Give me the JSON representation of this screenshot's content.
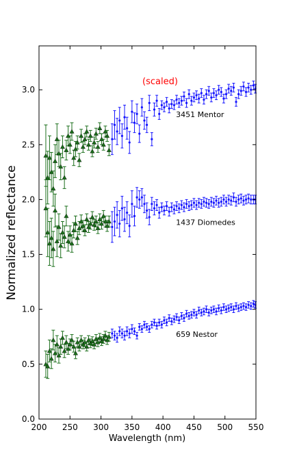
{
  "chart_data": {
    "type": "scatter",
    "title": "",
    "xlabel": "Wavelength (nm)",
    "ylabel": "Normalized reflectance",
    "xlim": [
      200,
      550
    ],
    "ylim": [
      0.0,
      3.4
    ],
    "x_ticks": [
      "200",
      "250",
      "300",
      "350",
      "400",
      "450",
      "500",
      "550"
    ],
    "y_ticks": [
      "0.0",
      "0.5",
      "1.0",
      "1.5",
      "2.0",
      "2.5",
      "3.0"
    ],
    "grid": false,
    "annotation": "(scaled)",
    "colors": {
      "uv": "#1a6e1a",
      "vis": "#1414ff",
      "annotation": "#ff0000"
    },
    "objects": [
      {
        "label": "3451 Mentor",
        "label_pos": [
          421,
          2.75
        ],
        "uv": {
          "x": [
            211,
            214,
            217,
            220,
            223,
            226,
            229,
            232,
            235,
            238,
            241,
            244,
            247,
            250,
            253,
            256,
            259,
            262,
            265,
            268,
            271,
            274,
            277,
            280,
            283,
            286,
            289,
            292,
            295,
            298,
            301,
            304,
            307,
            310,
            313
          ],
          "y": [
            2.4,
            2.2,
            2.38,
            2.25,
            2.1,
            2.35,
            2.55,
            2.42,
            2.3,
            2.48,
            2.2,
            2.45,
            2.58,
            2.5,
            2.62,
            2.38,
            2.46,
            2.52,
            2.36,
            2.58,
            2.48,
            2.55,
            2.62,
            2.5,
            2.58,
            2.44,
            2.52,
            2.6,
            2.48,
            2.65,
            2.55,
            2.5,
            2.62,
            2.58,
            2.45
          ],
          "err": [
            0.28,
            0.24,
            0.2,
            0.18,
            0.16,
            0.15,
            0.14,
            0.12,
            0.12,
            0.1,
            0.1,
            0.09,
            0.09,
            0.08,
            0.08,
            0.07,
            0.07,
            0.06,
            0.06,
            0.06,
            0.05,
            0.05,
            0.05,
            0.05,
            0.05,
            0.05,
            0.05,
            0.05,
            0.05,
            0.05,
            0.05,
            0.05,
            0.05,
            0.05,
            0.05
          ]
        },
        "vis": {
          "x": [
            318,
            322,
            326,
            330,
            334,
            338,
            342,
            346,
            350,
            354,
            358,
            362,
            366,
            370,
            374,
            378,
            382,
            386,
            390,
            394,
            398,
            402,
            406,
            410,
            414,
            418,
            422,
            426,
            430,
            434,
            438,
            442,
            446,
            450,
            454,
            458,
            462,
            466,
            470,
            474,
            478,
            482,
            486,
            490,
            494,
            498,
            502,
            506,
            510,
            514,
            518,
            522,
            526,
            530,
            534,
            538,
            542,
            546,
            549
          ],
          "y": [
            2.55,
            2.68,
            2.62,
            2.72,
            2.58,
            2.75,
            2.65,
            2.52,
            2.8,
            2.7,
            2.78,
            2.6,
            2.84,
            2.72,
            2.68,
            2.88,
            2.55,
            2.82,
            2.9,
            2.78,
            2.86,
            2.84,
            2.89,
            2.83,
            2.87,
            2.86,
            2.91,
            2.88,
            2.9,
            2.94,
            2.88,
            2.96,
            2.9,
            2.93,
            2.95,
            2.92,
            2.97,
            2.91,
            2.96,
            2.99,
            2.93,
            2.97,
            2.95,
            3.0,
            2.98,
            2.92,
            2.96,
            3.01,
            2.99,
            3.02,
            2.89,
            2.96,
            2.99,
            3.03,
            2.98,
            3.02,
            3.0,
            3.04,
            3.01
          ],
          "err": [
            0.14,
            0.13,
            0.12,
            0.12,
            0.11,
            0.11,
            0.1,
            0.1,
            0.1,
            0.09,
            0.09,
            0.08,
            0.08,
            0.08,
            0.07,
            0.07,
            0.06,
            0.06,
            0.05,
            0.05,
            0.04,
            0.04,
            0.04,
            0.04,
            0.04,
            0.04,
            0.04,
            0.04,
            0.04,
            0.04,
            0.04,
            0.04,
            0.04,
            0.04,
            0.04,
            0.04,
            0.04,
            0.04,
            0.04,
            0.04,
            0.04,
            0.04,
            0.04,
            0.04,
            0.04,
            0.04,
            0.04,
            0.04,
            0.04,
            0.04,
            0.04,
            0.04,
            0.04,
            0.04,
            0.04,
            0.04,
            0.04,
            0.04,
            0.04
          ]
        }
      },
      {
        "label": "1437 Diomedes",
        "label_pos": [
          421,
          1.77
        ],
        "uv": {
          "x": [
            211,
            214,
            217,
            220,
            223,
            226,
            229,
            232,
            235,
            238,
            241,
            244,
            247,
            250,
            253,
            256,
            259,
            262,
            265,
            268,
            271,
            274,
            277,
            280,
            283,
            286,
            289,
            292,
            295,
            298,
            301,
            304,
            307,
            310,
            313
          ],
          "y": [
            1.92,
            1.7,
            1.6,
            1.65,
            1.55,
            1.9,
            1.62,
            1.75,
            1.58,
            1.7,
            1.66,
            1.85,
            1.62,
            1.68,
            1.6,
            1.72,
            1.78,
            1.65,
            1.74,
            1.8,
            1.76,
            1.72,
            1.82,
            1.75,
            1.78,
            1.84,
            1.77,
            1.8,
            1.74,
            1.82,
            1.78,
            1.85,
            1.8,
            1.76,
            1.8
          ],
          "err": [
            0.26,
            0.22,
            0.2,
            0.18,
            0.16,
            0.15,
            0.14,
            0.12,
            0.11,
            0.1,
            0.1,
            0.09,
            0.09,
            0.08,
            0.08,
            0.07,
            0.07,
            0.06,
            0.06,
            0.06,
            0.05,
            0.05,
            0.05,
            0.05,
            0.05,
            0.05,
            0.05,
            0.05,
            0.05,
            0.05,
            0.05,
            0.05,
            0.05,
            0.05,
            0.05
          ]
        },
        "vis": {
          "x": [
            318,
            322,
            326,
            330,
            334,
            338,
            342,
            346,
            350,
            354,
            358,
            362,
            366,
            370,
            374,
            378,
            382,
            386,
            390,
            394,
            398,
            402,
            406,
            410,
            414,
            418,
            422,
            426,
            430,
            434,
            438,
            442,
            446,
            450,
            454,
            458,
            462,
            466,
            470,
            474,
            478,
            482,
            486,
            490,
            494,
            498,
            502,
            506,
            510,
            514,
            518,
            522,
            526,
            530,
            534,
            538,
            542,
            546,
            549
          ],
          "y": [
            1.75,
            1.8,
            1.86,
            1.78,
            1.92,
            1.82,
            1.88,
            1.76,
            1.96,
            1.85,
            2.02,
            2.0,
            2.02,
            1.96,
            1.9,
            1.84,
            1.96,
            1.92,
            1.95,
            1.88,
            1.93,
            1.9,
            1.94,
            1.89,
            1.93,
            1.91,
            1.94,
            1.92,
            1.95,
            1.93,
            1.96,
            1.94,
            1.95,
            1.97,
            1.95,
            1.97,
            1.96,
            1.98,
            1.97,
            1.96,
            1.98,
            1.97,
            1.99,
            1.97,
            1.98,
            2.0,
            1.98,
            2.0,
            1.99,
            2.02,
            1.98,
            2.0,
            2.01,
            1.99,
            2.0,
            2.01,
            2.0,
            2.0,
            2.0
          ],
          "err": [
            0.14,
            0.13,
            0.12,
            0.12,
            0.11,
            0.11,
            0.1,
            0.1,
            0.12,
            0.09,
            0.09,
            0.08,
            0.08,
            0.08,
            0.07,
            0.07,
            0.06,
            0.06,
            0.05,
            0.05,
            0.04,
            0.04,
            0.04,
            0.04,
            0.04,
            0.04,
            0.04,
            0.04,
            0.04,
            0.04,
            0.04,
            0.04,
            0.04,
            0.04,
            0.04,
            0.04,
            0.04,
            0.04,
            0.04,
            0.04,
            0.04,
            0.04,
            0.04,
            0.04,
            0.04,
            0.04,
            0.04,
            0.04,
            0.04,
            0.04,
            0.04,
            0.04,
            0.04,
            0.04,
            0.04,
            0.04,
            0.04,
            0.04,
            0.04
          ]
        }
      },
      {
        "label": "659 Nestor",
        "label_pos": [
          421,
          0.75
        ],
        "uv": {
          "x": [
            211,
            214,
            217,
            220,
            223,
            226,
            229,
            232,
            235,
            238,
            241,
            244,
            247,
            250,
            253,
            256,
            259,
            262,
            265,
            268,
            271,
            274,
            277,
            280,
            283,
            286,
            289,
            292,
            295,
            298,
            301,
            304,
            307,
            310,
            313
          ],
          "y": [
            0.5,
            0.48,
            0.62,
            0.55,
            0.72,
            0.6,
            0.68,
            0.58,
            0.66,
            0.74,
            0.62,
            0.7,
            0.64,
            0.68,
            0.72,
            0.66,
            0.6,
            0.7,
            0.66,
            0.72,
            0.68,
            0.7,
            0.66,
            0.72,
            0.69,
            0.71,
            0.68,
            0.73,
            0.7,
            0.74,
            0.71,
            0.73,
            0.76,
            0.72,
            0.75
          ],
          "err": [
            0.12,
            0.11,
            0.1,
            0.09,
            0.09,
            0.08,
            0.08,
            0.07,
            0.07,
            0.06,
            0.06,
            0.06,
            0.05,
            0.05,
            0.05,
            0.05,
            0.05,
            0.04,
            0.04,
            0.04,
            0.04,
            0.04,
            0.04,
            0.04,
            0.04,
            0.04,
            0.04,
            0.04,
            0.04,
            0.04,
            0.04,
            0.04,
            0.04,
            0.04,
            0.04
          ]
        },
        "vis": {
          "x": [
            318,
            322,
            326,
            330,
            334,
            338,
            342,
            346,
            350,
            354,
            358,
            362,
            366,
            370,
            374,
            378,
            382,
            386,
            390,
            394,
            398,
            402,
            406,
            410,
            414,
            418,
            422,
            426,
            430,
            434,
            438,
            442,
            446,
            450,
            454,
            458,
            462,
            466,
            470,
            474,
            478,
            482,
            486,
            490,
            494,
            498,
            502,
            506,
            510,
            514,
            518,
            522,
            526,
            530,
            534,
            538,
            542,
            546,
            549
          ],
          "y": [
            0.78,
            0.76,
            0.74,
            0.8,
            0.78,
            0.76,
            0.8,
            0.78,
            0.82,
            0.8,
            0.76,
            0.84,
            0.82,
            0.86,
            0.84,
            0.82,
            0.86,
            0.88,
            0.85,
            0.88,
            0.86,
            0.9,
            0.88,
            0.92,
            0.89,
            0.91,
            0.93,
            0.9,
            0.94,
            0.92,
            0.96,
            0.94,
            0.95,
            0.97,
            0.95,
            0.99,
            0.97,
            0.98,
            1.0,
            0.97,
            0.99,
            1.0,
            0.98,
            1.01,
            0.99,
            1.02,
            1.0,
            1.01,
            1.02,
            1.0,
            1.03,
            1.01,
            1.02,
            1.03,
            1.02,
            1.04,
            1.03,
            1.05,
            1.04
          ],
          "err": [
            0.04,
            0.04,
            0.04,
            0.04,
            0.04,
            0.04,
            0.04,
            0.04,
            0.04,
            0.03,
            0.03,
            0.03,
            0.03,
            0.03,
            0.03,
            0.03,
            0.03,
            0.03,
            0.03,
            0.03,
            0.03,
            0.03,
            0.03,
            0.03,
            0.03,
            0.03,
            0.03,
            0.03,
            0.03,
            0.03,
            0.03,
            0.03,
            0.03,
            0.03,
            0.03,
            0.03,
            0.03,
            0.03,
            0.03,
            0.03,
            0.03,
            0.03,
            0.03,
            0.03,
            0.03,
            0.03,
            0.03,
            0.03,
            0.03,
            0.03,
            0.03,
            0.03,
            0.03,
            0.03,
            0.03,
            0.03,
            0.03,
            0.03,
            0.03
          ]
        }
      }
    ]
  }
}
